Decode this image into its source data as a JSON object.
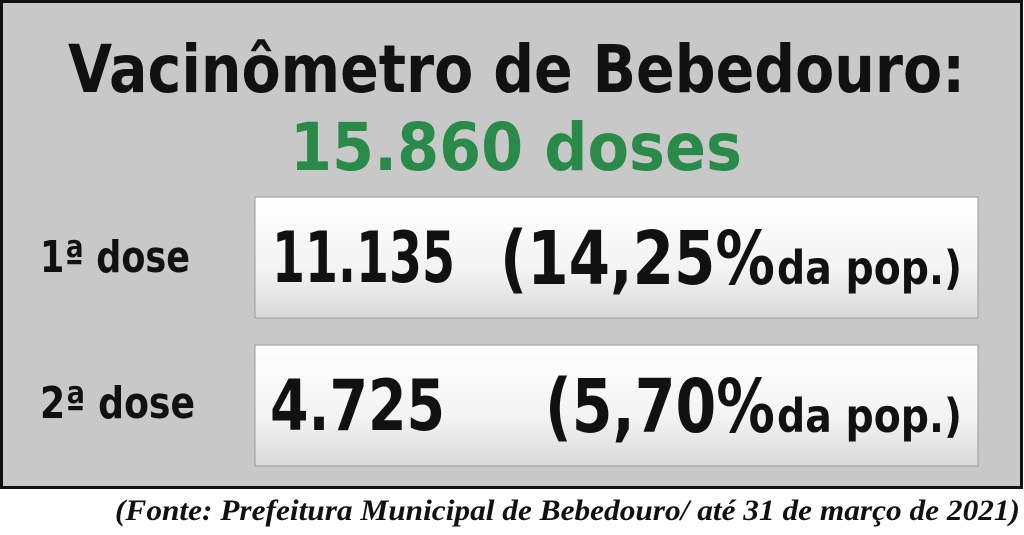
{
  "header": {
    "title": "Vacinômetro de Bebedouro:",
    "total": "15.860 doses"
  },
  "rows": [
    {
      "label": "1ª dose",
      "count": "11.135",
      "percent": "(14,25%",
      "suffix": "da pop.)"
    },
    {
      "label": "2ª dose",
      "count": "4.725",
      "percent": "(5,70%",
      "suffix": "da pop.)"
    }
  ],
  "footer": {
    "source": "(Fonte: Prefeitura Municipal de Bebedouro/ até 31 de março de 2021)"
  }
}
